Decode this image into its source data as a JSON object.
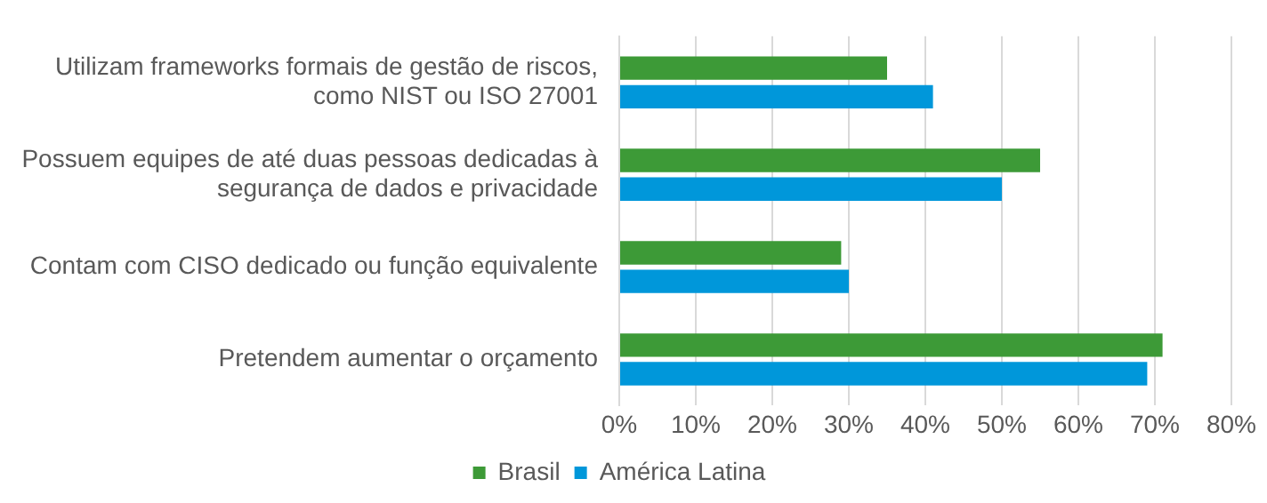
{
  "chart_data": {
    "type": "bar",
    "orientation": "horizontal",
    "categories": [
      "Utilizam frameworks formais de gestão de riscos, como NIST ou ISO 27001",
      "Possuem equipes de até duas pessoas dedicadas à segurança de dados e privacidade",
      "Contam com CISO dedicado ou função equivalente",
      "Pretendem aumentar o orçamento"
    ],
    "series": [
      {
        "name": "Brasil",
        "color": "#3d9a37",
        "values": [
          35,
          55,
          29,
          71
        ]
      },
      {
        "name": "América Latina",
        "color": "#0097da",
        "values": [
          41,
          50,
          30,
          69
        ]
      }
    ],
    "xlim": [
      0,
      80
    ],
    "xticks": [
      {
        "value": 0,
        "label": "0%"
      },
      {
        "value": 10,
        "label": "10%"
      },
      {
        "value": 20,
        "label": "20%"
      },
      {
        "value": 30,
        "label": "30%"
      },
      {
        "value": 40,
        "label": "40%"
      },
      {
        "value": 50,
        "label": "50%"
      },
      {
        "value": 60,
        "label": "60%"
      },
      {
        "value": 70,
        "label": "70%"
      },
      {
        "value": 80,
        "label": "80%"
      }
    ],
    "grid": "x",
    "legend": "bottom"
  }
}
